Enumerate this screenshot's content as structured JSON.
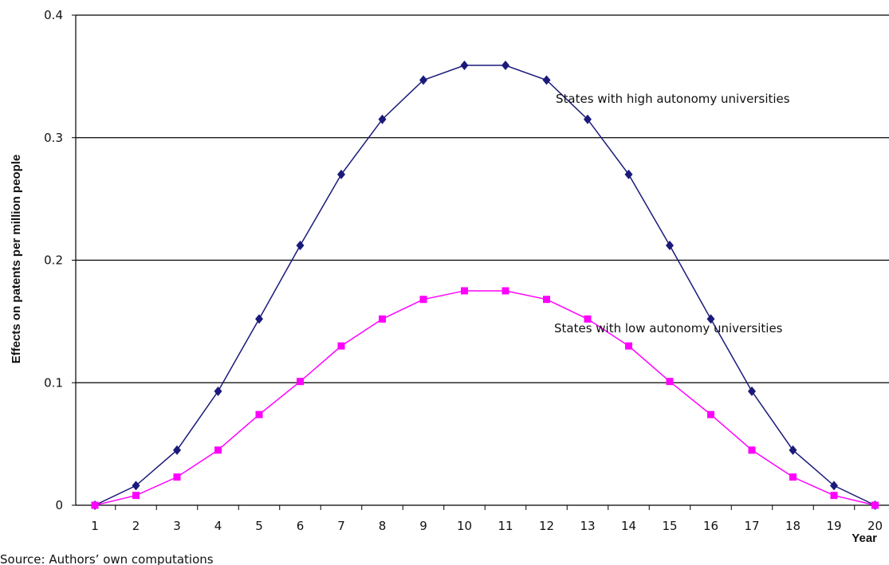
{
  "chart_data": {
    "type": "line",
    "title": "",
    "xlabel": "Year",
    "ylabel": "Effects on patents per million people",
    "categories": [
      "1",
      "2",
      "3",
      "4",
      "5",
      "6",
      "7",
      "8",
      "9",
      "10",
      "11",
      "12",
      "13",
      "14",
      "15",
      "16",
      "17",
      "18",
      "19",
      "20"
    ],
    "ylim": [
      0,
      0.4
    ],
    "yticks": [
      "0",
      "0.1",
      "0.2",
      "0.3",
      "0.4"
    ],
    "grid": "horizontal",
    "series": [
      {
        "name": "States with high autonomy universities",
        "color": "#1a1a7a",
        "marker": "diamond",
        "values": [
          0,
          0.016,
          0.045,
          0.093,
          0.152,
          0.212,
          0.27,
          0.315,
          0.347,
          0.359,
          0.359,
          0.347,
          0.315,
          0.27,
          0.212,
          0.152,
          0.093,
          0.045,
          0.016,
          0
        ]
      },
      {
        "name": "States with low autonomy universities",
        "color": "#ff00ff",
        "marker": "square",
        "values": [
          0,
          0.008,
          0.023,
          0.045,
          0.074,
          0.101,
          0.13,
          0.152,
          0.168,
          0.175,
          0.175,
          0.168,
          0.152,
          0.13,
          0.101,
          0.074,
          0.045,
          0.023,
          0.008,
          0
        ]
      }
    ],
    "annotations": [
      "States with high autonomy universities",
      "States with low autonomy universities"
    ]
  },
  "source_note": "Source: Authors’ own computations"
}
